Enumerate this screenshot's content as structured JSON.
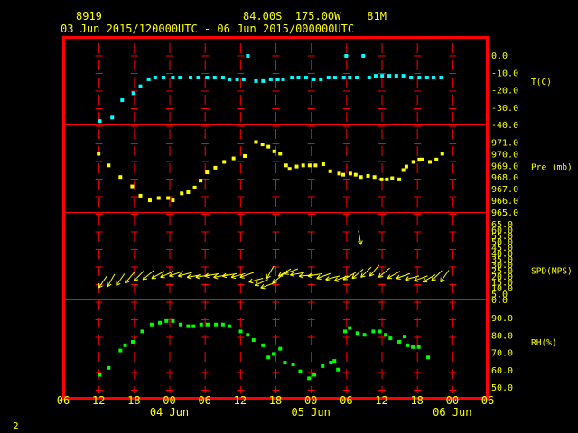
{
  "header": {
    "station_id": "8919",
    "location": "84.00S  175.00W    81M",
    "time_range": "03 Jun 2015/120000UTC - 06 Jun 2015/000000UTC"
  },
  "footer": {
    "page_number": "2"
  },
  "colors": {
    "frame": "#ff0000",
    "grid": "#ff0000",
    "text": "#ffff00",
    "temperature": "#00ffff",
    "pressure": "#ffff00",
    "wind": "#ffff00",
    "humidity": "#00ff00"
  },
  "chart_data": {
    "type": "scatter",
    "x_axis": {
      "unit": "hours since 03 Jun 2015 06 UTC",
      "range": [
        0,
        72
      ],
      "tick_labels": [
        "06",
        "12",
        "18",
        "00",
        "06",
        "12",
        "18",
        "00",
        "06",
        "12",
        "18",
        "00",
        "06"
      ],
      "date_labels": [
        {
          "hour": 18,
          "label": "04 Jun"
        },
        {
          "hour": 42,
          "label": "05 Jun"
        },
        {
          "hour": 66,
          "label": "06 Jun"
        }
      ]
    },
    "panels": [
      {
        "name": "temperature",
        "label": "T(C)",
        "ylim": [
          -40,
          0
        ],
        "ticks": [
          "0.0",
          "-10.0",
          "-20.0",
          "-30.0",
          "-40.0"
        ],
        "points": [
          [
            6.2,
            -38
          ],
          [
            8.3,
            -36
          ],
          [
            10.0,
            -26
          ],
          [
            11.9,
            -22
          ],
          [
            13.1,
            -18
          ],
          [
            14.5,
            -14
          ],
          [
            15.6,
            -13
          ],
          [
            17.0,
            -13
          ],
          [
            18.6,
            -13
          ],
          [
            19.8,
            -13
          ],
          [
            21.6,
            -13
          ],
          [
            22.9,
            -13
          ],
          [
            24.4,
            -13
          ],
          [
            25.7,
            -13
          ],
          [
            27.1,
            -13
          ],
          [
            28.2,
            -14
          ],
          [
            29.5,
            -14
          ],
          [
            30.6,
            -14
          ],
          [
            31.3,
            -0.5
          ],
          [
            32.7,
            -15
          ],
          [
            33.9,
            -15
          ],
          [
            35.2,
            -14
          ],
          [
            36.4,
            -14
          ],
          [
            37.3,
            -14
          ],
          [
            38.8,
            -13
          ],
          [
            39.9,
            -13
          ],
          [
            41.2,
            -13
          ],
          [
            42.5,
            -14
          ],
          [
            43.7,
            -14
          ],
          [
            45.0,
            -13
          ],
          [
            46.1,
            -13
          ],
          [
            47.6,
            -13
          ],
          [
            48.0,
            -0.5
          ],
          [
            48.6,
            -13
          ],
          [
            49.8,
            -13
          ],
          [
            50.9,
            -0.5
          ],
          [
            51.9,
            -13
          ],
          [
            53.0,
            -12
          ],
          [
            54.1,
            -12
          ],
          [
            55.3,
            -12
          ],
          [
            56.5,
            -12
          ],
          [
            57.7,
            -12
          ],
          [
            59.0,
            -13
          ],
          [
            60.4,
            -13
          ],
          [
            61.7,
            -13
          ],
          [
            62.8,
            -13
          ],
          [
            64.1,
            -13
          ]
        ]
      },
      {
        "name": "pressure",
        "label": "Pre (mb)",
        "ylim": [
          965,
          971.5
        ],
        "ticks": [
          "971.0",
          "970.0",
          "969.0",
          "968.0",
          "967.0",
          "966.0",
          "965.0"
        ],
        "points": [
          [
            6.0,
            970.0
          ],
          [
            7.7,
            969.0
          ],
          [
            9.7,
            968.0
          ],
          [
            11.7,
            967.2
          ],
          [
            13.1,
            966.4
          ],
          [
            14.7,
            966.0
          ],
          [
            16.2,
            966.2
          ],
          [
            17.8,
            966.2
          ],
          [
            18.6,
            966.0
          ],
          [
            20.1,
            966.6
          ],
          [
            21.2,
            966.7
          ],
          [
            22.3,
            967.1
          ],
          [
            23.3,
            967.7
          ],
          [
            24.4,
            968.4
          ],
          [
            25.8,
            968.8
          ],
          [
            27.3,
            969.3
          ],
          [
            28.9,
            969.6
          ],
          [
            30.8,
            969.8
          ],
          [
            32.7,
            971.0
          ],
          [
            33.8,
            970.8
          ],
          [
            34.8,
            970.6
          ],
          [
            35.8,
            970.2
          ],
          [
            36.8,
            970.0
          ],
          [
            37.8,
            969.0
          ],
          [
            38.4,
            968.7
          ],
          [
            39.6,
            968.9
          ],
          [
            40.7,
            969.0
          ],
          [
            41.8,
            969.0
          ],
          [
            42.8,
            969.0
          ],
          [
            44.1,
            969.1
          ],
          [
            45.3,
            968.5
          ],
          [
            46.8,
            968.3
          ],
          [
            47.5,
            968.2
          ],
          [
            48.7,
            968.3
          ],
          [
            49.6,
            968.2
          ],
          [
            50.5,
            968.0
          ],
          [
            51.7,
            968.1
          ],
          [
            52.8,
            968.0
          ],
          [
            54.0,
            967.8
          ],
          [
            54.9,
            967.8
          ],
          [
            55.8,
            967.9
          ],
          [
            57.0,
            967.8
          ],
          [
            57.7,
            968.6
          ],
          [
            58.2,
            968.9
          ],
          [
            59.4,
            969.3
          ],
          [
            60.4,
            969.5
          ],
          [
            60.9,
            969.5
          ],
          [
            62.2,
            969.3
          ],
          [
            63.3,
            969.5
          ],
          [
            64.3,
            970.0
          ]
        ]
      },
      {
        "name": "wind",
        "label": "SPD(MPS)",
        "ylim": [
          0,
          65
        ],
        "ticks": [
          "65.0",
          "60.0",
          "55.0",
          "50.0",
          "45.0",
          "40.0",
          "35.0",
          "30.0",
          "25.0",
          "20.0",
          "15.0",
          "10.0",
          "5.0",
          "0.0"
        ],
        "points": [
          [
            6,
            10,
            55
          ],
          [
            7.5,
            11,
            60
          ],
          [
            9,
            12,
            55
          ],
          [
            10.5,
            14,
            50
          ],
          [
            12,
            16,
            45
          ],
          [
            13.5,
            17,
            40
          ],
          [
            15,
            18,
            30
          ],
          [
            16.5,
            19,
            25
          ],
          [
            18,
            20,
            20
          ],
          [
            19.5,
            20,
            15
          ],
          [
            21,
            19,
            10
          ],
          [
            22.5,
            19,
            10
          ],
          [
            24,
            20,
            10
          ],
          [
            25.5,
            19,
            10
          ],
          [
            27,
            20,
            10
          ],
          [
            28.5,
            19,
            15
          ],
          [
            30,
            19,
            20
          ],
          [
            31.5,
            15,
            15
          ],
          [
            32.5,
            12,
            25
          ],
          [
            33.5,
            10,
            20
          ],
          [
            34.5,
            18,
            60
          ],
          [
            35.5,
            14,
            40
          ],
          [
            36.5,
            20,
            30
          ],
          [
            37.5,
            22,
            20
          ],
          [
            38.5,
            21,
            10
          ],
          [
            40,
            20,
            5
          ],
          [
            41.5,
            20,
            10
          ],
          [
            43,
            18,
            20
          ],
          [
            44.5,
            17,
            15
          ],
          [
            46,
            16,
            20
          ],
          [
            47.5,
            17,
            30
          ],
          [
            49,
            18,
            40
          ],
          [
            50.5,
            19,
            45
          ],
          [
            52,
            20,
            50
          ],
          [
            53.5,
            19,
            40
          ],
          [
            55,
            18,
            30
          ],
          [
            56.5,
            18,
            20
          ],
          [
            58,
            17,
            15
          ],
          [
            59.5,
            16,
            20
          ],
          [
            61,
            15,
            30
          ],
          [
            62.5,
            16,
            45
          ],
          [
            64,
            15,
            55
          ],
          [
            50.5,
            47,
            100
          ]
        ]
      },
      {
        "name": "humidity",
        "label": "RH(%)",
        "ylim": [
          50,
          90
        ],
        "ticks": [
          "90.0",
          "80.0",
          "70.0",
          "60.0",
          "50.0"
        ],
        "points": [
          [
            6.2,
            57
          ],
          [
            7.7,
            61
          ],
          [
            9.7,
            71
          ],
          [
            10.5,
            74
          ],
          [
            11.8,
            76
          ],
          [
            13.4,
            82
          ],
          [
            15.0,
            86
          ],
          [
            16.4,
            87
          ],
          [
            17.5,
            88
          ],
          [
            18.6,
            88
          ],
          [
            19.9,
            86
          ],
          [
            21.2,
            85
          ],
          [
            22.1,
            85
          ],
          [
            23.4,
            86
          ],
          [
            24.5,
            86
          ],
          [
            25.9,
            86
          ],
          [
            27.1,
            86
          ],
          [
            28.2,
            85
          ],
          [
            30.1,
            82
          ],
          [
            31.3,
            80
          ],
          [
            32.3,
            77
          ],
          [
            33.9,
            74
          ],
          [
            34.8,
            67
          ],
          [
            35.7,
            69
          ],
          [
            36.8,
            72
          ],
          [
            37.6,
            64
          ],
          [
            39.0,
            63
          ],
          [
            40.2,
            59
          ],
          [
            41.7,
            55
          ],
          [
            42.6,
            57
          ],
          [
            44.0,
            62
          ],
          [
            45.4,
            64
          ],
          [
            46.0,
            65
          ],
          [
            46.6,
            60
          ],
          [
            47.8,
            82
          ],
          [
            48.6,
            84
          ],
          [
            49.9,
            81
          ],
          [
            51.1,
            80
          ],
          [
            52.6,
            82
          ],
          [
            53.7,
            82
          ],
          [
            54.7,
            80
          ],
          [
            55.5,
            78
          ],
          [
            57.0,
            76
          ],
          [
            57.9,
            79
          ],
          [
            58.4,
            74
          ],
          [
            59.3,
            73
          ],
          [
            60.3,
            73
          ],
          [
            61.9,
            67
          ]
        ]
      }
    ]
  }
}
